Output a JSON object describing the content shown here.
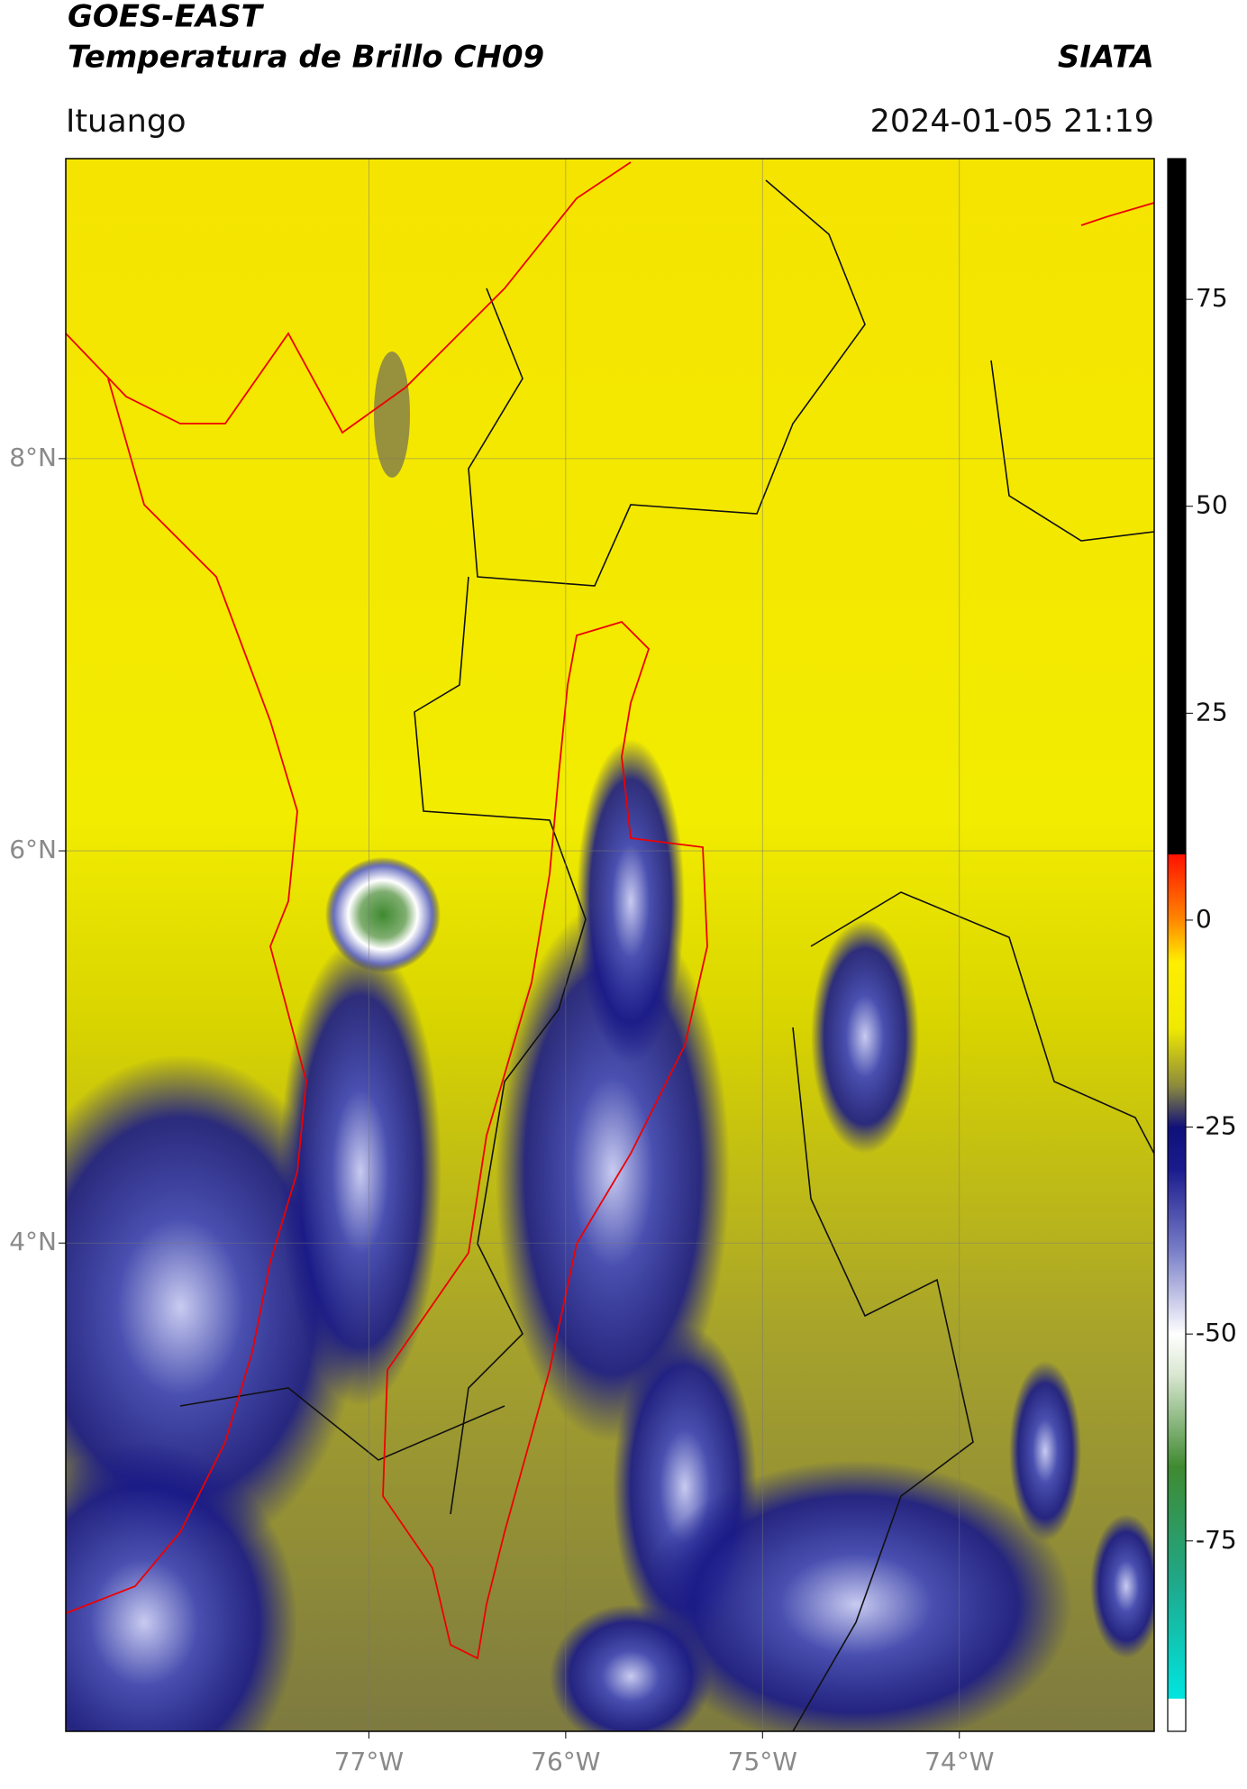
{
  "chart_data": {
    "type": "map",
    "title": "GOES-EAST",
    "subtitle": "Temperatura de Brillo CH09",
    "source": "SIATA",
    "location": "Ituango",
    "timestamp": "2024-01-05 21:19",
    "xlim": [
      -78.54,
      -73.01
    ],
    "ylim": [
      1.51,
      9.53
    ],
    "xticks": [
      {
        "value": -77,
        "label": "77°W"
      },
      {
        "value": -76,
        "label": "76°W"
      },
      {
        "value": -75,
        "label": "75°W"
      },
      {
        "value": -74,
        "label": "74°W"
      }
    ],
    "yticks": [
      {
        "value": 8,
        "label": "8°N"
      },
      {
        "value": 6,
        "label": "6°N"
      },
      {
        "value": 4,
        "label": "4°N"
      }
    ],
    "grid": true,
    "clim": [
      -98,
      92
    ],
    "cticks": [
      75,
      50,
      25,
      0,
      -25,
      -50,
      -75
    ],
    "colormap": [
      {
        "value": -98,
        "color": "#ffffff"
      },
      {
        "value": -94,
        "color": "#ffffff"
      },
      {
        "value": -94,
        "color": "#00e5e0"
      },
      {
        "value": -80,
        "color": "#1fa88a"
      },
      {
        "value": -66,
        "color": "#3f8a30"
      },
      {
        "value": -55,
        "color": "#d8e6d0"
      },
      {
        "value": -50,
        "color": "#ffffff"
      },
      {
        "value": -40,
        "color": "#7a7fc8"
      },
      {
        "value": -30,
        "color": "#1a1a8c"
      },
      {
        "value": -25,
        "color": "#10107a"
      },
      {
        "value": -20,
        "color": "#8c8a3c"
      },
      {
        "value": -13,
        "color": "#f0ea00"
      },
      {
        "value": -5,
        "color": "#ffee00"
      },
      {
        "value": 0,
        "color": "#ff8800"
      },
      {
        "value": 8,
        "color": "#ff1000"
      },
      {
        "value": 8,
        "color": "#000000"
      },
      {
        "value": 92,
        "color": "#000000"
      }
    ]
  }
}
